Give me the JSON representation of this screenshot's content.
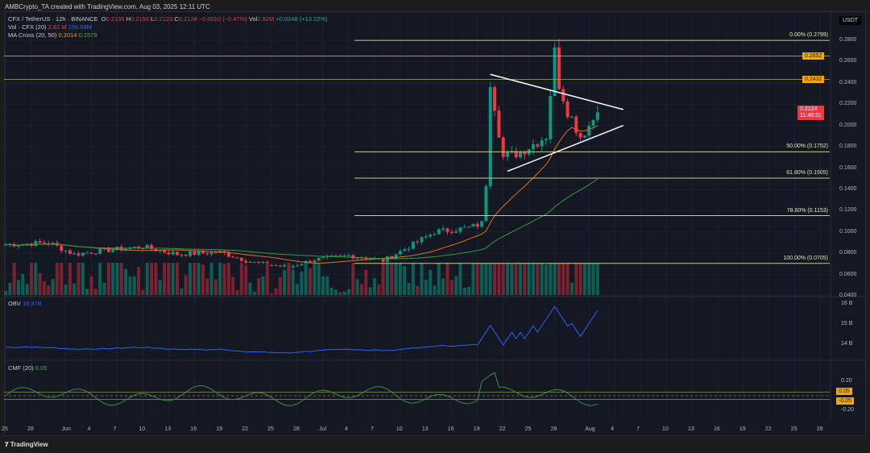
{
  "credit": "AMBCrypto_TA created with TradingView.com, Aug 03, 2025 12:11 UTC",
  "legend": {
    "symbol": "CFX / TetherUS · 12h · BINANCE",
    "o_label": "O",
    "o": "0.2135",
    "h_label": "H",
    "h": "0.2156",
    "l_label": "L",
    "l": "0.2123",
    "c_label": "C",
    "c": "0.2124",
    "change": "−0.0010 (−0.47%)",
    "vol_label": "Vol",
    "vol": "2.92M",
    "change2": "+0.0248 (+13.22%)",
    "vol_ind": "Vol · CFX (20)",
    "vol_val1": "2.82 M",
    "vol_val2": "155.68M",
    "ma": "MA Cross (20, 50)",
    "ma1": "0.2014",
    "ma2": "0.1579"
  },
  "obv": {
    "label": "OBV",
    "value": "16.37B",
    "ticks": [
      "16 B",
      "15 B",
      "14 B"
    ]
  },
  "cmf": {
    "label": "CMF (20)",
    "value": "0.05",
    "ticks": [
      "0.20",
      "-0.20"
    ],
    "tag_hi": "0.05",
    "tag_lo": "-0.05"
  },
  "price_axis": {
    "currency": "USDT",
    "ticks": [
      "0.2800",
      "0.2600",
      "0.2400",
      "0.2200",
      "0.2000",
      "0.1800",
      "0.1600",
      "0.1400",
      "0.1200",
      "0.1000",
      "0.0800",
      "0.0600",
      "0.0400"
    ],
    "last_price": "0.2124",
    "countdown": "11:48:31",
    "tag1": "0.2652",
    "tag2": "0.2432"
  },
  "fib": [
    {
      "label": "0.00% (0.2799)",
      "value": 0.2799
    },
    {
      "label": "50.00% (0.1752)",
      "value": 0.1752
    },
    {
      "label": "61.80% (0.1505)",
      "value": 0.1505
    },
    {
      "label": "78.60% (0.1153)",
      "value": 0.1153
    },
    {
      "label": "100.00% (0.0705)",
      "value": 0.0705
    }
  ],
  "levels": [
    0.2652,
    0.2432
  ],
  "time_ticks": [
    {
      "t": "25",
      "d": 0
    },
    {
      "t": "28",
      "d": 3
    },
    {
      "t": "Jun",
      "d": 7
    },
    {
      "t": "4",
      "d": 10
    },
    {
      "t": "7",
      "d": 13
    },
    {
      "t": "10",
      "d": 16
    },
    {
      "t": "13",
      "d": 19
    },
    {
      "t": "16",
      "d": 22
    },
    {
      "t": "19",
      "d": 25
    },
    {
      "t": "22",
      "d": 28
    },
    {
      "t": "25",
      "d": 31
    },
    {
      "t": "28",
      "d": 34
    },
    {
      "t": "Jul",
      "d": 37
    },
    {
      "t": "4",
      "d": 40
    },
    {
      "t": "7",
      "d": 43
    },
    {
      "t": "10",
      "d": 46
    },
    {
      "t": "13",
      "d": 49
    },
    {
      "t": "16",
      "d": 52
    },
    {
      "t": "19",
      "d": 55
    },
    {
      "t": "22",
      "d": 58
    },
    {
      "t": "25",
      "d": 61
    },
    {
      "t": "28",
      "d": 64
    },
    {
      "t": "Aug",
      "d": 68
    },
    {
      "t": "4",
      "d": 71
    },
    {
      "t": "7",
      "d": 74
    },
    {
      "t": "10",
      "d": 77
    },
    {
      "t": "13",
      "d": 80
    },
    {
      "t": "16",
      "d": 83
    },
    {
      "t": "19",
      "d": 86
    },
    {
      "t": "22",
      "d": 89
    },
    {
      "t": "25",
      "d": 92
    },
    {
      "t": "28",
      "d": 95
    }
  ],
  "chart_data": {
    "type": "candlestick",
    "interval": "12h",
    "keyframes": [
      [
        0,
        0.088
      ],
      [
        5,
        0.09
      ],
      [
        8,
        0.079
      ],
      [
        12,
        0.083
      ],
      [
        16,
        0.086
      ],
      [
        20,
        0.079
      ],
      [
        25,
        0.081
      ],
      [
        29,
        0.071
      ],
      [
        33,
        0.067
      ],
      [
        36,
        0.074
      ],
      [
        40,
        0.078
      ],
      [
        44,
        0.073
      ],
      [
        47,
        0.086
      ],
      [
        50,
        0.1
      ],
      [
        54,
        0.104
      ],
      [
        55.5,
        0.108
      ],
      [
        56,
        0.145
      ],
      [
        56.5,
        0.24
      ],
      [
        57,
        0.22
      ],
      [
        58,
        0.17
      ],
      [
        60,
        0.175
      ],
      [
        63,
        0.19
      ],
      [
        64,
        0.27
      ],
      [
        64.5,
        0.24
      ],
      [
        65.5,
        0.215
      ],
      [
        67,
        0.19
      ],
      [
        68,
        0.2
      ],
      [
        69,
        0.2124
      ]
    ],
    "triangle": {
      "upper": [
        [
          56.5,
          0.248
        ],
        [
          72,
          0.215
        ]
      ],
      "lower": [
        [
          58.5,
          0.157
        ],
        [
          72,
          0.2
        ]
      ]
    }
  },
  "footer": "TradingView"
}
